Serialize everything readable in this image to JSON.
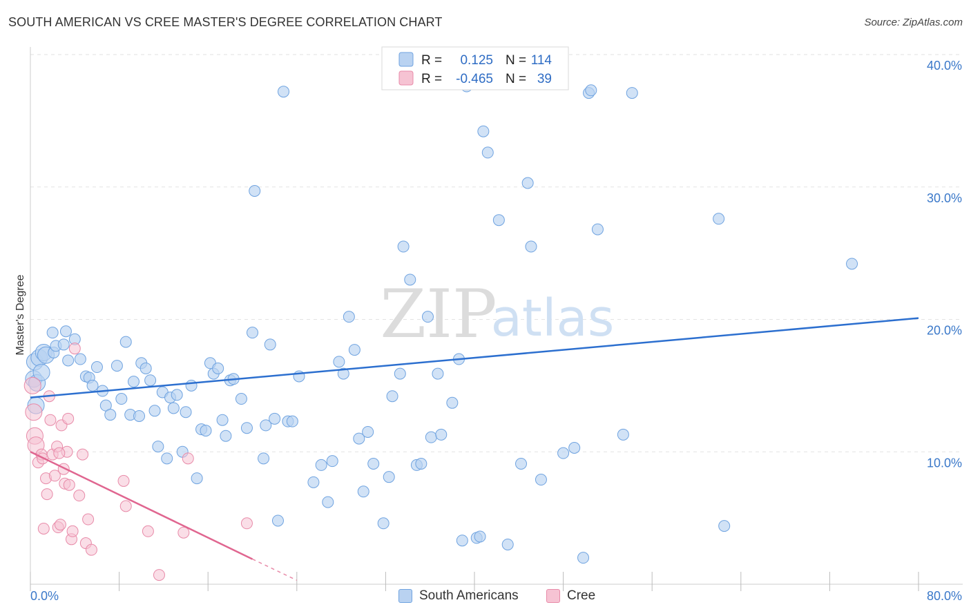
{
  "title": "SOUTH AMERICAN VS CREE MASTER'S DEGREE CORRELATION CHART",
  "source": "Source: ZipAtlas.com",
  "watermark": {
    "zip": "ZIP",
    "atlas": "atlas"
  },
  "colors": {
    "blue": "#6fa3e0",
    "blue_fill": "#b9d2f1",
    "blue_line": "#2c6fcf",
    "pink": "#e88aa8",
    "pink_fill": "#f6c3d3",
    "pink_line": "#e06690",
    "tick": "#3a78c9"
  },
  "legend": {
    "rows": [
      {
        "r_label": "R =",
        "r_value": "0.125",
        "n_label": "N =",
        "n_value": "114"
      },
      {
        "r_label": "R =",
        "r_value": "-0.465",
        "n_label": "N =",
        "n_value": "39"
      }
    ]
  },
  "bottom_legend": {
    "south": "South Americans",
    "cree": "Cree"
  },
  "chart_data": {
    "type": "scatter",
    "title": "SOUTH AMERICAN VS CREE MASTER'S DEGREE CORRELATION CHART",
    "xlabel": "",
    "ylabel": "Master's Degree",
    "xlim": [
      0,
      80
    ],
    "ylim": [
      0,
      40
    ],
    "y_ticks": [
      10,
      20,
      30,
      40
    ],
    "y_tick_labels": [
      "10.0%",
      "20.0%",
      "30.0%",
      "40.0%"
    ],
    "x_tick_labels": [
      "0.0%",
      "80.0%"
    ],
    "series": [
      {
        "name": "South Americans",
        "trend": {
          "x": [
            0,
            80
          ],
          "y": [
            14.1,
            20.1
          ]
        },
        "points": [
          [
            0.3,
            15.5
          ],
          [
            0.4,
            16.8
          ],
          [
            0.5,
            13.5
          ],
          [
            0.6,
            15.2
          ],
          [
            0.8,
            17.1
          ],
          [
            1.0,
            16.0
          ],
          [
            1.2,
            17.5
          ],
          [
            1.4,
            17.3
          ],
          [
            2.0,
            19.0
          ],
          [
            2.1,
            17.5
          ],
          [
            2.3,
            18.0
          ],
          [
            3.0,
            18.1
          ],
          [
            3.2,
            19.1
          ],
          [
            3.4,
            16.9
          ],
          [
            4.0,
            18.5
          ],
          [
            4.5,
            17.0
          ],
          [
            5.0,
            15.7
          ],
          [
            5.3,
            15.6
          ],
          [
            5.6,
            15.0
          ],
          [
            6.0,
            16.4
          ],
          [
            6.5,
            14.6
          ],
          [
            6.8,
            13.5
          ],
          [
            7.2,
            12.8
          ],
          [
            7.8,
            16.5
          ],
          [
            8.2,
            14.0
          ],
          [
            8.6,
            18.3
          ],
          [
            9.0,
            12.8
          ],
          [
            9.3,
            15.3
          ],
          [
            9.8,
            12.7
          ],
          [
            10.0,
            16.7
          ],
          [
            10.4,
            16.3
          ],
          [
            10.8,
            15.4
          ],
          [
            11.2,
            13.1
          ],
          [
            11.5,
            10.4
          ],
          [
            11.9,
            14.5
          ],
          [
            12.3,
            9.5
          ],
          [
            12.6,
            14.1
          ],
          [
            12.9,
            13.3
          ],
          [
            13.2,
            14.3
          ],
          [
            13.7,
            10.0
          ],
          [
            14.0,
            13.0
          ],
          [
            14.5,
            15.0
          ],
          [
            15.0,
            8.0
          ],
          [
            15.4,
            11.7
          ],
          [
            15.8,
            11.6
          ],
          [
            16.2,
            16.7
          ],
          [
            16.5,
            15.9
          ],
          [
            16.9,
            16.3
          ],
          [
            17.3,
            12.4
          ],
          [
            17.6,
            11.2
          ],
          [
            18.0,
            15.4
          ],
          [
            18.3,
            15.5
          ],
          [
            19.0,
            14.0
          ],
          [
            19.5,
            11.8
          ],
          [
            20.0,
            19.0
          ],
          [
            20.2,
            29.7
          ],
          [
            21.0,
            9.5
          ],
          [
            21.2,
            12.0
          ],
          [
            21.6,
            18.1
          ],
          [
            22.0,
            12.5
          ],
          [
            22.3,
            4.8
          ],
          [
            22.8,
            37.2
          ],
          [
            23.2,
            12.3
          ],
          [
            23.6,
            12.3
          ],
          [
            24.2,
            15.7
          ],
          [
            25.5,
            7.7
          ],
          [
            26.2,
            9.0
          ],
          [
            26.8,
            6.2
          ],
          [
            27.2,
            9.3
          ],
          [
            27.8,
            16.8
          ],
          [
            28.2,
            15.9
          ],
          [
            28.7,
            20.2
          ],
          [
            29.2,
            17.7
          ],
          [
            29.6,
            11.0
          ],
          [
            30.0,
            7.0
          ],
          [
            30.4,
            11.5
          ],
          [
            30.9,
            9.1
          ],
          [
            31.8,
            4.6
          ],
          [
            32.3,
            8.1
          ],
          [
            32.6,
            14.2
          ],
          [
            33.3,
            15.9
          ],
          [
            33.6,
            25.5
          ],
          [
            34.2,
            23.0
          ],
          [
            34.8,
            9.0
          ],
          [
            35.2,
            9.1
          ],
          [
            35.8,
            20.2
          ],
          [
            36.1,
            11.1
          ],
          [
            36.7,
            15.9
          ],
          [
            37.0,
            11.3
          ],
          [
            38.0,
            13.7
          ],
          [
            38.6,
            17.0
          ],
          [
            38.9,
            3.3
          ],
          [
            39.3,
            37.6
          ],
          [
            40.2,
            3.5
          ],
          [
            40.8,
            34.2
          ],
          [
            41.2,
            32.6
          ],
          [
            42.2,
            27.5
          ],
          [
            43.0,
            3.0
          ],
          [
            44.2,
            9.1
          ],
          [
            44.8,
            30.3
          ],
          [
            45.1,
            25.5
          ],
          [
            46.0,
            7.9
          ],
          [
            48.0,
            9.9
          ],
          [
            49.0,
            10.3
          ],
          [
            49.8,
            2.0
          ],
          [
            50.3,
            37.1
          ],
          [
            50.5,
            37.3
          ],
          [
            51.1,
            26.8
          ],
          [
            53.4,
            11.3
          ],
          [
            54.2,
            37.1
          ],
          [
            62.0,
            27.6
          ],
          [
            62.5,
            4.4
          ],
          [
            74.0,
            24.2
          ],
          [
            40.5,
            3.6
          ]
        ]
      },
      {
        "name": "Cree",
        "trend": {
          "x": [
            0,
            20
          ],
          "y": [
            10.0,
            1.9
          ]
        },
        "trend_extension": {
          "x": [
            20,
            24
          ],
          "y": [
            1.9,
            0.3
          ]
        },
        "points": [
          [
            0.2,
            15.0
          ],
          [
            0.3,
            13.0
          ],
          [
            0.4,
            11.2
          ],
          [
            0.5,
            10.5
          ],
          [
            0.7,
            9.2
          ],
          [
            1.0,
            9.8
          ],
          [
            1.2,
            4.2
          ],
          [
            1.4,
            8.0
          ],
          [
            1.5,
            6.8
          ],
          [
            1.7,
            14.2
          ],
          [
            1.8,
            12.4
          ],
          [
            2.0,
            9.8
          ],
          [
            2.2,
            8.2
          ],
          [
            2.4,
            10.4
          ],
          [
            2.5,
            4.3
          ],
          [
            2.7,
            4.5
          ],
          [
            2.8,
            12.0
          ],
          [
            3.0,
            8.7
          ],
          [
            3.1,
            7.6
          ],
          [
            3.3,
            10.0
          ],
          [
            3.4,
            12.5
          ],
          [
            3.5,
            7.5
          ],
          [
            3.7,
            3.4
          ],
          [
            3.8,
            4.0
          ],
          [
            4.0,
            17.8
          ],
          [
            4.4,
            6.7
          ],
          [
            4.7,
            9.8
          ],
          [
            5.0,
            3.1
          ],
          [
            5.2,
            4.9
          ],
          [
            5.5,
            2.6
          ],
          [
            8.4,
            7.8
          ],
          [
            8.6,
            5.9
          ],
          [
            10.6,
            4.0
          ],
          [
            11.6,
            0.7
          ],
          [
            13.8,
            3.9
          ],
          [
            14.2,
            9.5
          ],
          [
            19.5,
            4.6
          ],
          [
            1.1,
            9.5
          ],
          [
            2.6,
            9.9
          ]
        ]
      }
    ]
  }
}
